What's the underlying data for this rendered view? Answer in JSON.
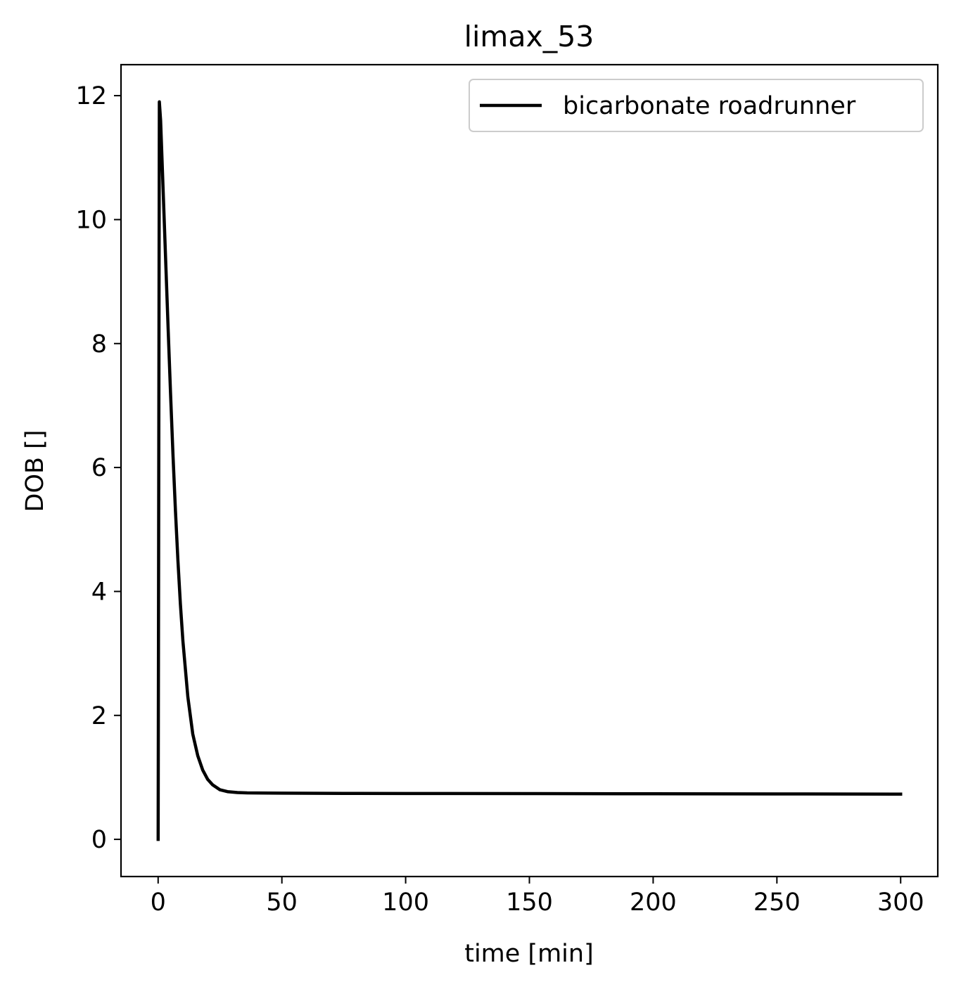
{
  "chart_data": {
    "type": "line",
    "title": "limax_53",
    "xlabel": "time [min]",
    "ylabel": "DOB []",
    "xlim": [
      -15,
      315
    ],
    "ylim": [
      -0.6,
      12.5
    ],
    "xticks": [
      0,
      50,
      100,
      150,
      200,
      250,
      300
    ],
    "yticks": [
      0,
      2,
      4,
      6,
      8,
      10,
      12
    ],
    "xtick_labels": [
      "0",
      "50",
      "100",
      "150",
      "200",
      "250",
      "300"
    ],
    "ytick_labels": [
      "0",
      "2",
      "4",
      "6",
      "8",
      "10",
      "12"
    ],
    "grid": false,
    "legend_position": "upper right",
    "series": [
      {
        "name": "bicarbonate roadrunner",
        "color": "#000000",
        "x": [
          0,
          0.5,
          1,
          2,
          3,
          4,
          5,
          6,
          7,
          8,
          9,
          10,
          12,
          14,
          16,
          18,
          20,
          22,
          25,
          28,
          32,
          36,
          40,
          50,
          75,
          100,
          150,
          200,
          250,
          300
        ],
        "y": [
          0,
          11.9,
          11.6,
          10.5,
          9.4,
          8.3,
          7.2,
          6.2,
          5.3,
          4.5,
          3.8,
          3.2,
          2.3,
          1.7,
          1.35,
          1.12,
          0.97,
          0.88,
          0.8,
          0.77,
          0.755,
          0.75,
          0.748,
          0.745,
          0.742,
          0.74,
          0.738,
          0.735,
          0.733,
          0.73
        ]
      }
    ]
  }
}
